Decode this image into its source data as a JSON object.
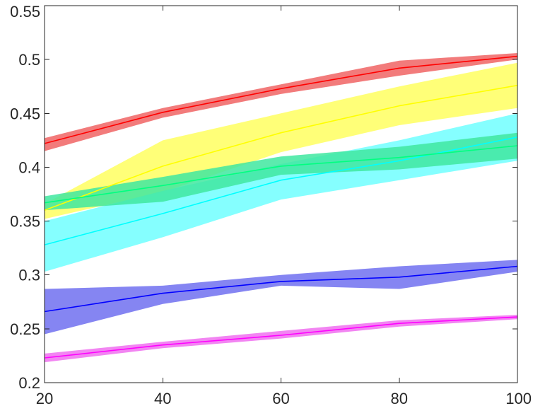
{
  "chart_data": {
    "type": "line",
    "title": "",
    "xlabel": "",
    "ylabel": "",
    "x": [
      20,
      40,
      60,
      80,
      100
    ],
    "xlim": [
      20,
      100
    ],
    "ylim": [
      0.2,
      0.55
    ],
    "xticks": [
      20,
      40,
      60,
      80,
      100
    ],
    "xtick_labels": [
      "20",
      "40",
      "60",
      "80",
      "100"
    ],
    "yticks": [
      0.2,
      0.25,
      0.3,
      0.35,
      0.4,
      0.45,
      0.5,
      0.55
    ],
    "ytick_labels": [
      "0.2",
      "0.25",
      "0.3",
      "0.35",
      "0.4",
      "0.45",
      "0.5",
      "0.55"
    ],
    "grid": false,
    "legend": "none",
    "series": [
      {
        "color": "#ff0000",
        "band_color": "#f06464",
        "values": [
          0.422,
          0.451,
          0.473,
          0.492,
          0.503
        ],
        "upper": [
          0.427,
          0.455,
          0.477,
          0.499,
          0.506
        ],
        "lower": [
          0.415,
          0.446,
          0.468,
          0.485,
          0.5
        ]
      },
      {
        "color": "#ffff00",
        "band_color": "#ffff60",
        "values": [
          0.36,
          0.401,
          0.432,
          0.457,
          0.476
        ],
        "upper": [
          0.366,
          0.425,
          0.45,
          0.475,
          0.497
        ],
        "lower": [
          0.352,
          0.377,
          0.414,
          0.439,
          0.455
        ]
      },
      {
        "color": "#00ffff",
        "band_color": "#70ffff",
        "values": [
          0.328,
          0.357,
          0.388,
          0.406,
          0.428
        ],
        "upper": [
          0.35,
          0.378,
          0.403,
          0.425,
          0.45
        ],
        "lower": [
          0.303,
          0.335,
          0.37,
          0.388,
          0.406
        ]
      },
      {
        "color": "#00ff80",
        "band_color": "#40e8a0",
        "values": [
          0.367,
          0.383,
          0.401,
          0.409,
          0.42
        ],
        "upper": [
          0.373,
          0.391,
          0.41,
          0.419,
          0.432
        ],
        "lower": [
          0.36,
          0.368,
          0.393,
          0.398,
          0.408
        ]
      },
      {
        "color": "#0000ff",
        "band_color": "#7070f0",
        "values": [
          0.266,
          0.283,
          0.294,
          0.298,
          0.308
        ],
        "upper": [
          0.287,
          0.29,
          0.3,
          0.308,
          0.314
        ],
        "lower": [
          0.245,
          0.273,
          0.29,
          0.287,
          0.303
        ]
      },
      {
        "color": "#ff00ff",
        "band_color": "#f070f0",
        "values": [
          0.223,
          0.235,
          0.244,
          0.255,
          0.261
        ],
        "upper": [
          0.227,
          0.238,
          0.248,
          0.258,
          0.263
        ],
        "lower": [
          0.219,
          0.232,
          0.241,
          0.252,
          0.259
        ]
      }
    ]
  }
}
